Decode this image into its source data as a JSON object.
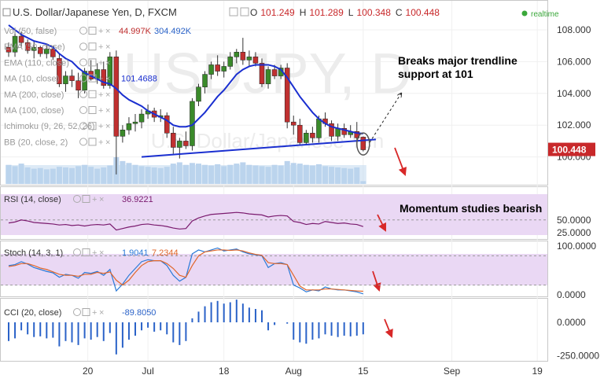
{
  "header": {
    "symbol_title": "U.S. Dollar/Japanese Yen, D, FXCM",
    "ohlc": [
      {
        "label": "O",
        "value": "101.249"
      },
      {
        "label": "H",
        "value": "101.289"
      },
      {
        "label": "L",
        "value": "100.348"
      },
      {
        "label": "C",
        "value": "100.448"
      }
    ],
    "realtime_label": "realtime",
    "watermark": "USDJPY, D",
    "watermark_sub": "U.S. Dollar/Japanese Yen"
  },
  "indicators": [
    {
      "name": "Vol (50, false)",
      "values": [
        "44.997K",
        "304.492K"
      ]
    },
    {
      "name": "EMA (50, close)",
      "values": []
    },
    {
      "name": "EMA (110, close)",
      "values": []
    },
    {
      "name": "MA (10, close)",
      "values": [
        "101.4688"
      ]
    },
    {
      "name": "MA (200, close)",
      "values": []
    },
    {
      "name": "MA (100, close)",
      "values": []
    },
    {
      "name": "Ichimoku (9, 26, 52, 26)",
      "values": []
    },
    {
      "name": "BB (20, close, 2)",
      "values": []
    }
  ],
  "annotations": {
    "trendline": "Breaks major trendline support at 101",
    "momentum": "Momentum studies bearish"
  },
  "last_price_tag": "100.448",
  "panels": {
    "rsi": {
      "label": "RSI (14, close)",
      "value": "36.9221",
      "ticks": [
        "50.0000",
        "25.0000"
      ]
    },
    "stoch": {
      "label": "Stoch (14, 3, 1)",
      "values": [
        "1.9041",
        "7.2344"
      ],
      "ticks": [
        "100.0000",
        "0.0000"
      ]
    },
    "cci": {
      "label": "CCI (20, close)",
      "value": "-89.8050",
      "ticks": [
        "0.0000",
        "-250.0000"
      ]
    }
  },
  "colors": {
    "up": "#3a8a2a",
    "down": "#c03030",
    "ma_line": "#1a2fd0",
    "trendline": "#1a2fd0",
    "rsi_line": "#7a1a6e",
    "stoch_k": "#2a7ad8",
    "stoch_d": "#e0662a",
    "cci_bar": "#2a62c8",
    "arrow": "#d82828",
    "panel_fill": "#ead8f4",
    "price_tag": "#c8282a"
  },
  "chart_data": {
    "type": "candlestick",
    "title": "U.S. Dollar/Japanese Yen, D, FXCM",
    "xlabel": "",
    "ylabel": "",
    "x_ticks": [
      "20",
      "Jul",
      "18",
      "Aug",
      "15",
      "Sep",
      "19"
    ],
    "ylim": [
      99.2,
      109.4
    ],
    "y_ticks": [
      "108.000",
      "106.000",
      "104.000",
      "102.000",
      "100.000"
    ],
    "grid": true,
    "candles": [
      {
        "o": 106.9,
        "h": 107.2,
        "l": 106.3,
        "c": 106.6
      },
      {
        "o": 106.6,
        "h": 107.9,
        "l": 106.3,
        "c": 107.6
      },
      {
        "o": 107.6,
        "h": 107.9,
        "l": 106.9,
        "c": 107.2
      },
      {
        "o": 107.2,
        "h": 107.4,
        "l": 106.5,
        "c": 106.7
      },
      {
        "o": 106.7,
        "h": 107.3,
        "l": 106.2,
        "c": 106.9
      },
      {
        "o": 106.9,
        "h": 107.0,
        "l": 106.3,
        "c": 106.5
      },
      {
        "o": 106.5,
        "h": 107.1,
        "l": 106.2,
        "c": 106.8
      },
      {
        "o": 106.8,
        "h": 107.0,
        "l": 106.1,
        "c": 106.3
      },
      {
        "o": 106.2,
        "h": 106.5,
        "l": 104.4,
        "c": 104.6
      },
      {
        "o": 104.6,
        "h": 105.4,
        "l": 104.1,
        "c": 105.1
      },
      {
        "o": 105.1,
        "h": 105.5,
        "l": 104.4,
        "c": 104.8
      },
      {
        "o": 104.8,
        "h": 105.3,
        "l": 103.7,
        "c": 104.2
      },
      {
        "o": 104.2,
        "h": 105.6,
        "l": 104.0,
        "c": 105.4
      },
      {
        "o": 105.4,
        "h": 106.1,
        "l": 104.8,
        "c": 104.9
      },
      {
        "o": 104.9,
        "h": 105.9,
        "l": 104.6,
        "c": 105.5
      },
      {
        "o": 105.5,
        "h": 106.0,
        "l": 104.3,
        "c": 104.5
      },
      {
        "o": 104.5,
        "h": 106.6,
        "l": 104.3,
        "c": 106.3
      },
      {
        "o": 106.3,
        "h": 106.7,
        "l": 98.9,
        "c": 101.3
      },
      {
        "o": 101.3,
        "h": 102.0,
        "l": 100.9,
        "c": 101.7
      },
      {
        "o": 101.7,
        "h": 102.5,
        "l": 101.4,
        "c": 102.1
      },
      {
        "o": 102.1,
        "h": 102.7,
        "l": 101.6,
        "c": 102.2
      },
      {
        "o": 102.2,
        "h": 103.0,
        "l": 101.8,
        "c": 102.7
      },
      {
        "o": 102.7,
        "h": 103.3,
        "l": 102.4,
        "c": 102.9
      },
      {
        "o": 102.9,
        "h": 103.1,
        "l": 102.2,
        "c": 102.5
      },
      {
        "o": 102.5,
        "h": 103.0,
        "l": 102.2,
        "c": 102.6
      },
      {
        "o": 102.6,
        "h": 102.8,
        "l": 101.2,
        "c": 101.5
      },
      {
        "o": 101.5,
        "h": 101.9,
        "l": 100.2,
        "c": 100.6
      },
      {
        "o": 100.6,
        "h": 101.2,
        "l": 99.9,
        "c": 101.0
      },
      {
        "o": 101.0,
        "h": 101.6,
        "l": 100.5,
        "c": 100.7
      },
      {
        "o": 100.7,
        "h": 103.7,
        "l": 100.4,
        "c": 103.5
      },
      {
        "o": 103.5,
        "h": 104.6,
        "l": 103.2,
        "c": 104.4
      },
      {
        "o": 104.4,
        "h": 105.4,
        "l": 104.0,
        "c": 105.2
      },
      {
        "o": 105.2,
        "h": 106.0,
        "l": 104.9,
        "c": 105.8
      },
      {
        "o": 105.8,
        "h": 106.4,
        "l": 105.1,
        "c": 105.4
      },
      {
        "o": 105.4,
        "h": 106.0,
        "l": 105.0,
        "c": 105.7
      },
      {
        "o": 105.7,
        "h": 106.6,
        "l": 105.5,
        "c": 106.3
      },
      {
        "o": 106.3,
        "h": 106.8,
        "l": 105.9,
        "c": 106.6
      },
      {
        "o": 106.6,
        "h": 107.5,
        "l": 105.8,
        "c": 106.1
      },
      {
        "o": 106.1,
        "h": 106.7,
        "l": 105.7,
        "c": 106.3
      },
      {
        "o": 106.3,
        "h": 106.6,
        "l": 105.7,
        "c": 105.9
      },
      {
        "o": 105.9,
        "h": 106.2,
        "l": 104.4,
        "c": 104.6
      },
      {
        "o": 104.6,
        "h": 105.7,
        "l": 104.3,
        "c": 105.5
      },
      {
        "o": 105.5,
        "h": 105.8,
        "l": 104.9,
        "c": 105.1
      },
      {
        "o": 105.1,
        "h": 105.8,
        "l": 104.9,
        "c": 105.6
      },
      {
        "o": 105.6,
        "h": 105.9,
        "l": 101.8,
        "c": 102.2
      },
      {
        "o": 102.2,
        "h": 102.6,
        "l": 101.4,
        "c": 102.0
      },
      {
        "o": 102.0,
        "h": 102.4,
        "l": 100.7,
        "c": 100.9
      },
      {
        "o": 100.9,
        "h": 101.7,
        "l": 100.8,
        "c": 101.5
      },
      {
        "o": 101.5,
        "h": 101.9,
        "l": 100.9,
        "c": 101.2
      },
      {
        "o": 101.2,
        "h": 102.6,
        "l": 100.9,
        "c": 102.4
      },
      {
        "o": 102.4,
        "h": 102.8,
        "l": 101.9,
        "c": 102.1
      },
      {
        "o": 102.1,
        "h": 102.3,
        "l": 101.0,
        "c": 101.3
      },
      {
        "o": 101.3,
        "h": 102.1,
        "l": 101.0,
        "c": 101.8
      },
      {
        "o": 101.8,
        "h": 102.1,
        "l": 101.2,
        "c": 101.4
      },
      {
        "o": 101.4,
        "h": 102.0,
        "l": 101.2,
        "c": 101.6
      },
      {
        "o": 101.6,
        "h": 102.2,
        "l": 100.9,
        "c": 101.2
      },
      {
        "o": 101.249,
        "h": 101.289,
        "l": 100.348,
        "c": 100.448
      }
    ],
    "series": [
      {
        "name": "MA (10, close)",
        "values": [
          108.3,
          108.0,
          107.7,
          107.5,
          107.3,
          107.2,
          107.1,
          106.9,
          106.5,
          106.2,
          106.0,
          105.6,
          105.3,
          105.1,
          104.9,
          104.7,
          104.6,
          104.3,
          103.9,
          103.6,
          103.4,
          103.2,
          102.9,
          102.7,
          102.5,
          102.3,
          102.0,
          101.9,
          101.9,
          102.0,
          102.4,
          102.8,
          103.3,
          103.8,
          104.2,
          104.7,
          105.2,
          105.5,
          105.7,
          105.8,
          105.8,
          105.8,
          105.7,
          105.5,
          105.0,
          104.4,
          103.8,
          103.3,
          102.8,
          102.4,
          102.1,
          101.9,
          101.8,
          101.7,
          101.6,
          101.5,
          101.47
        ]
      },
      {
        "name": "Vol (50, false)",
        "values": [
          300,
          280,
          320,
          260,
          240,
          250,
          230,
          240,
          270,
          260,
          250,
          280,
          300,
          270,
          240,
          260,
          290,
          420,
          360,
          330,
          300,
          280,
          270,
          260,
          250,
          270,
          320,
          340,
          300,
          330,
          320,
          300,
          290,
          310,
          280,
          300,
          320,
          340,
          300,
          290,
          280,
          270,
          300,
          290,
          360,
          330,
          320,
          300,
          290,
          310,
          280,
          270,
          260,
          250,
          240,
          260,
          45
        ]
      },
      {
        "name": "RSI (14, close)",
        "values": [
          44,
          46,
          50,
          48,
          45,
          44,
          43,
          42,
          40,
          41,
          39,
          40,
          38,
          40,
          41,
          40,
          42,
          30,
          33,
          36,
          38,
          41,
          42,
          40,
          39,
          37,
          34,
          32,
          33,
          48,
          54,
          58,
          61,
          62,
          63,
          64,
          65,
          64,
          62,
          61,
          60,
          56,
          58,
          59,
          58,
          47,
          45,
          41,
          43,
          42,
          47,
          45,
          43,
          44,
          42,
          41,
          36.9
        ]
      },
      {
        "name": "Stoch %K",
        "values": [
          60,
          62,
          68,
          63,
          56,
          52,
          48,
          45,
          36,
          42,
          40,
          34,
          46,
          44,
          48,
          40,
          52,
          8,
          22,
          40,
          54,
          68,
          72,
          70,
          70,
          60,
          40,
          28,
          36,
          84,
          92,
          88,
          92,
          96,
          90,
          92,
          94,
          88,
          84,
          82,
          80,
          56,
          64,
          66,
          62,
          20,
          14,
          6,
          10,
          8,
          16,
          12,
          10,
          10,
          8,
          6,
          1.9
        ]
      },
      {
        "name": "Stoch %D",
        "values": [
          58,
          60,
          64,
          64,
          60,
          55,
          52,
          47,
          42,
          40,
          40,
          38,
          42,
          42,
          46,
          44,
          47,
          30,
          20,
          30,
          46,
          60,
          68,
          70,
          70,
          64,
          54,
          40,
          36,
          60,
          80,
          88,
          90,
          92,
          92,
          91,
          92,
          90,
          86,
          83,
          81,
          66,
          64,
          64,
          62,
          40,
          18,
          10,
          10,
          10,
          12,
          12,
          11,
          10,
          9,
          8,
          7.2
        ]
      },
      {
        "name": "CCI (20, close)",
        "values": [
          -140,
          -120,
          -60,
          -90,
          -110,
          -105,
          -120,
          -115,
          -180,
          -140,
          -150,
          -170,
          -120,
          -130,
          -110,
          -140,
          -80,
          -240,
          -190,
          -130,
          -100,
          -60,
          -40,
          -70,
          -60,
          -90,
          -150,
          -170,
          -140,
          30,
          80,
          120,
          150,
          160,
          140,
          150,
          170,
          140,
          110,
          100,
          90,
          -60,
          -20,
          0,
          -10,
          -130,
          -150,
          -160,
          -130,
          -120,
          -90,
          -100,
          -110,
          -100,
          -105,
          -100,
          -89.8
        ]
      }
    ],
    "trendline": {
      "from": {
        "index": 21,
        "value": 100.0
      },
      "to": {
        "index": 58,
        "value": 101.1
      }
    },
    "projection": {
      "from": {
        "index": 57,
        "value": 100.9
      },
      "to": {
        "index": 62,
        "value": 104.0
      }
    }
  }
}
